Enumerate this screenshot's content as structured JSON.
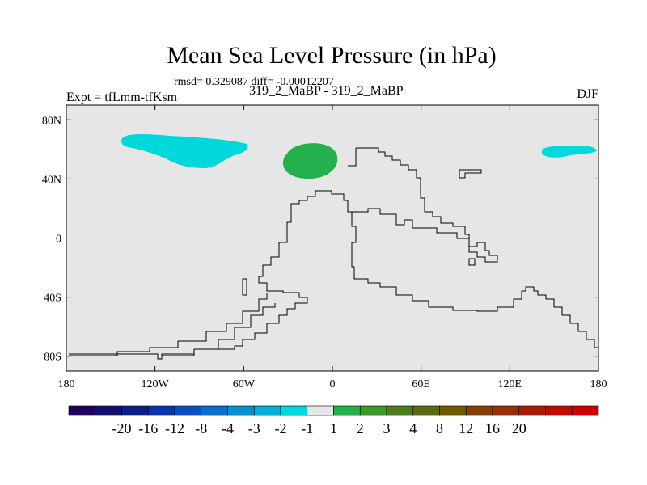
{
  "header": {
    "title": "Mean Sea Level Pressure (in hPa)",
    "stats": "rmsd= 0.329087  diff= -0.00012207",
    "left": "Expt = tfLmm-tfKsm",
    "center": "319_2_MaBP - 319_2_MaBP",
    "right": "DJF"
  },
  "map": {
    "background": "#e6e6e6",
    "lat_ticks": [
      {
        "label": "80N",
        "value": 80
      },
      {
        "label": "40N",
        "value": 40
      },
      {
        "label": "0",
        "value": 0
      },
      {
        "label": "40S",
        "value": -40
      },
      {
        "label": "80S",
        "value": -80
      }
    ],
    "lon_ticks": [
      {
        "label": "180",
        "value": -180
      },
      {
        "label": "120W",
        "value": -120
      },
      {
        "label": "60W",
        "value": -60
      },
      {
        "label": "0",
        "value": 0
      },
      {
        "label": "60E",
        "value": 60
      },
      {
        "label": "120E",
        "value": 120
      },
      {
        "label": "180",
        "value": 180
      }
    ],
    "anomalies": [
      {
        "name": "anomaly-north-pacific",
        "color": "#00d8dc",
        "class": "-2 to -1"
      },
      {
        "name": "anomaly-north-atlantic",
        "color": "#22b14c",
        "class": "1 to 2"
      },
      {
        "name": "anomaly-north-east-pacific",
        "color": "#00d8dc",
        "class": "-2 to -1"
      }
    ]
  },
  "colorbar": {
    "colors": [
      "#1f005f",
      "#14106f",
      "#0b1f8a",
      "#0734a6",
      "#0a4fc0",
      "#0b6dcc",
      "#078fd0",
      "#00b0d8",
      "#00d8dc",
      "#e6e6e6",
      "#22b14c",
      "#3a9a28",
      "#4c7c1d",
      "#5e6a10",
      "#6f5a00",
      "#864000",
      "#983005",
      "#a81d05",
      "#bc0c00",
      "#d00000"
    ],
    "labels": [
      "-20",
      "-16",
      "-12",
      "-8",
      "-4",
      "-3",
      "-2",
      "-1",
      "1",
      "2",
      "3",
      "4",
      "8",
      "12",
      "16",
      "20"
    ]
  }
}
